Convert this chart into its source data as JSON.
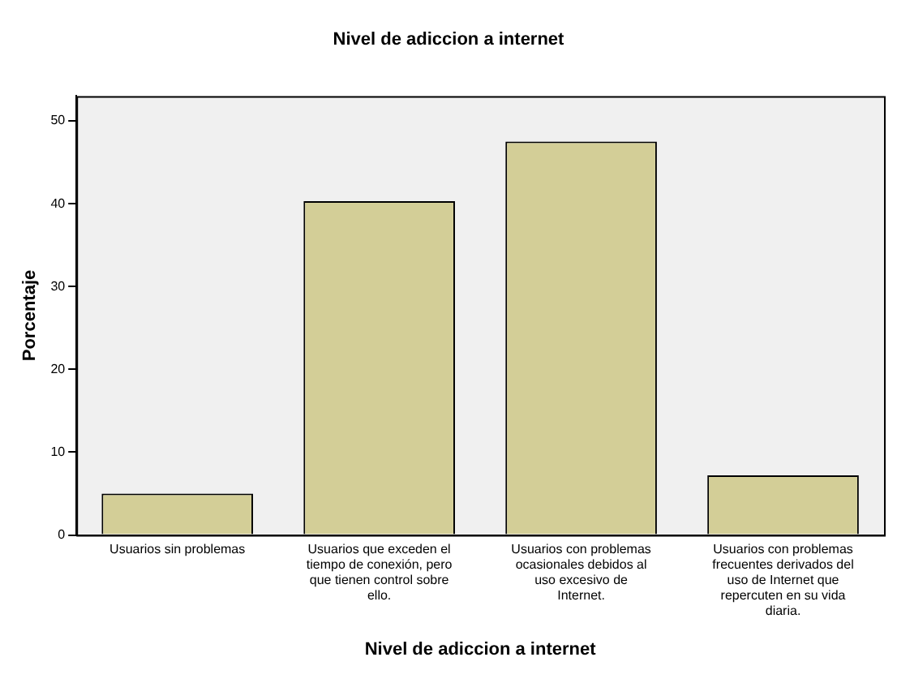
{
  "chart_data": {
    "type": "bar",
    "title": "Nivel de adiccion a internet",
    "xlabel": "Nivel de adiccion a internet",
    "ylabel": "Porcentaje",
    "categories": [
      "Usuarios sin problemas",
      "Usuarios que exceden el tiempo de conexión, pero que tienen control sobre ello.",
      "Usuarios con problemas ocasionales debidos al uso excesivo de Internet.",
      "Usuarios con problemas frecuentes derivados del uso de Internet que repercuten en su vida diaria."
    ],
    "values": [
      5.0,
      40.3,
      47.5,
      7.2
    ],
    "color": "#d3ce97",
    "ylim": [
      0,
      53
    ],
    "yticks": [
      0,
      10,
      20,
      30,
      40,
      50
    ],
    "grid": false,
    "legend": false
  }
}
